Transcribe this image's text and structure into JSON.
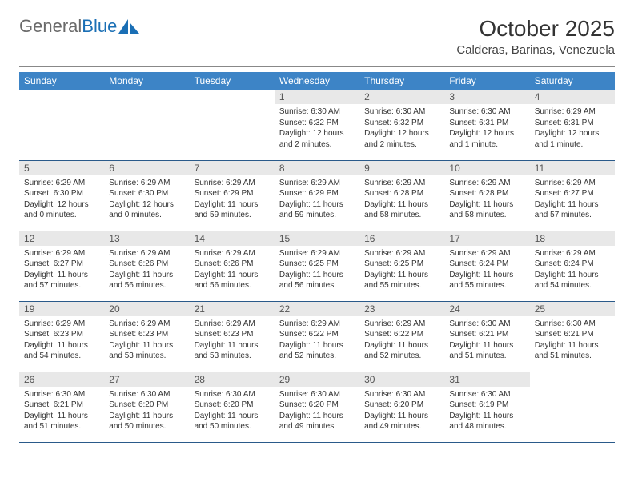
{
  "logo": {
    "text_gray": "General",
    "text_blue": "Blue"
  },
  "title": "October 2025",
  "location": "Calderas, Barinas, Venezuela",
  "colors": {
    "header_bg": "#3d84c6",
    "header_text": "#ffffff",
    "daynum_bg": "#e8e8e8",
    "row_border": "#2a5a8a",
    "logo_gray": "#6a6a6a",
    "logo_blue": "#1a6fb5"
  },
  "weekdays": [
    "Sunday",
    "Monday",
    "Tuesday",
    "Wednesday",
    "Thursday",
    "Friday",
    "Saturday"
  ],
  "weeks": [
    [
      null,
      null,
      null,
      {
        "n": "1",
        "sr": "6:30 AM",
        "ss": "6:32 PM",
        "dl": "12 hours and 2 minutes."
      },
      {
        "n": "2",
        "sr": "6:30 AM",
        "ss": "6:32 PM",
        "dl": "12 hours and 2 minutes."
      },
      {
        "n": "3",
        "sr": "6:30 AM",
        "ss": "6:31 PM",
        "dl": "12 hours and 1 minute."
      },
      {
        "n": "4",
        "sr": "6:29 AM",
        "ss": "6:31 PM",
        "dl": "12 hours and 1 minute."
      }
    ],
    [
      {
        "n": "5",
        "sr": "6:29 AM",
        "ss": "6:30 PM",
        "dl": "12 hours and 0 minutes."
      },
      {
        "n": "6",
        "sr": "6:29 AM",
        "ss": "6:30 PM",
        "dl": "12 hours and 0 minutes."
      },
      {
        "n": "7",
        "sr": "6:29 AM",
        "ss": "6:29 PM",
        "dl": "11 hours and 59 minutes."
      },
      {
        "n": "8",
        "sr": "6:29 AM",
        "ss": "6:29 PM",
        "dl": "11 hours and 59 minutes."
      },
      {
        "n": "9",
        "sr": "6:29 AM",
        "ss": "6:28 PM",
        "dl": "11 hours and 58 minutes."
      },
      {
        "n": "10",
        "sr": "6:29 AM",
        "ss": "6:28 PM",
        "dl": "11 hours and 58 minutes."
      },
      {
        "n": "11",
        "sr": "6:29 AM",
        "ss": "6:27 PM",
        "dl": "11 hours and 57 minutes."
      }
    ],
    [
      {
        "n": "12",
        "sr": "6:29 AM",
        "ss": "6:27 PM",
        "dl": "11 hours and 57 minutes."
      },
      {
        "n": "13",
        "sr": "6:29 AM",
        "ss": "6:26 PM",
        "dl": "11 hours and 56 minutes."
      },
      {
        "n": "14",
        "sr": "6:29 AM",
        "ss": "6:26 PM",
        "dl": "11 hours and 56 minutes."
      },
      {
        "n": "15",
        "sr": "6:29 AM",
        "ss": "6:25 PM",
        "dl": "11 hours and 56 minutes."
      },
      {
        "n": "16",
        "sr": "6:29 AM",
        "ss": "6:25 PM",
        "dl": "11 hours and 55 minutes."
      },
      {
        "n": "17",
        "sr": "6:29 AM",
        "ss": "6:24 PM",
        "dl": "11 hours and 55 minutes."
      },
      {
        "n": "18",
        "sr": "6:29 AM",
        "ss": "6:24 PM",
        "dl": "11 hours and 54 minutes."
      }
    ],
    [
      {
        "n": "19",
        "sr": "6:29 AM",
        "ss": "6:23 PM",
        "dl": "11 hours and 54 minutes."
      },
      {
        "n": "20",
        "sr": "6:29 AM",
        "ss": "6:23 PM",
        "dl": "11 hours and 53 minutes."
      },
      {
        "n": "21",
        "sr": "6:29 AM",
        "ss": "6:23 PM",
        "dl": "11 hours and 53 minutes."
      },
      {
        "n": "22",
        "sr": "6:29 AM",
        "ss": "6:22 PM",
        "dl": "11 hours and 52 minutes."
      },
      {
        "n": "23",
        "sr": "6:29 AM",
        "ss": "6:22 PM",
        "dl": "11 hours and 52 minutes."
      },
      {
        "n": "24",
        "sr": "6:30 AM",
        "ss": "6:21 PM",
        "dl": "11 hours and 51 minutes."
      },
      {
        "n": "25",
        "sr": "6:30 AM",
        "ss": "6:21 PM",
        "dl": "11 hours and 51 minutes."
      }
    ],
    [
      {
        "n": "26",
        "sr": "6:30 AM",
        "ss": "6:21 PM",
        "dl": "11 hours and 51 minutes."
      },
      {
        "n": "27",
        "sr": "6:30 AM",
        "ss": "6:20 PM",
        "dl": "11 hours and 50 minutes."
      },
      {
        "n": "28",
        "sr": "6:30 AM",
        "ss": "6:20 PM",
        "dl": "11 hours and 50 minutes."
      },
      {
        "n": "29",
        "sr": "6:30 AM",
        "ss": "6:20 PM",
        "dl": "11 hours and 49 minutes."
      },
      {
        "n": "30",
        "sr": "6:30 AM",
        "ss": "6:20 PM",
        "dl": "11 hours and 49 minutes."
      },
      {
        "n": "31",
        "sr": "6:30 AM",
        "ss": "6:19 PM",
        "dl": "11 hours and 48 minutes."
      },
      null
    ]
  ],
  "labels": {
    "sunrise": "Sunrise:",
    "sunset": "Sunset:",
    "daylight": "Daylight:"
  }
}
